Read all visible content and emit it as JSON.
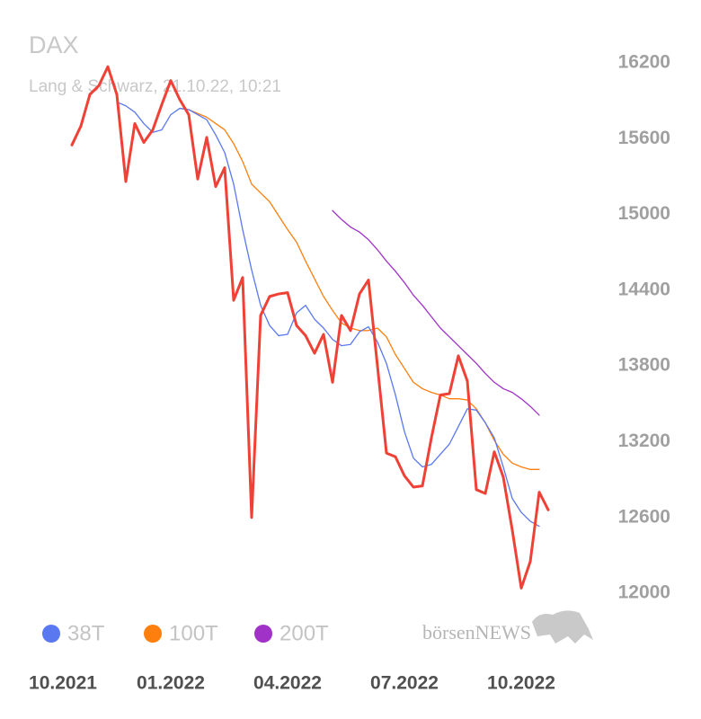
{
  "chart_data": {
    "type": "line",
    "title": "DAX",
    "subtitle": "Lang & Schwarz, 21.10.22, 10:21",
    "watermark": "börsenNEWS",
    "categories": [
      "10.2021",
      null,
      null,
      null,
      null,
      null,
      null,
      null,
      null,
      null,
      null,
      null,
      "01.2022",
      null,
      null,
      null,
      null,
      null,
      null,
      null,
      null,
      null,
      null,
      null,
      null,
      "04.2022",
      null,
      null,
      null,
      null,
      null,
      null,
      null,
      null,
      null,
      null,
      null,
      null,
      "07.2022",
      null,
      null,
      null,
      null,
      null,
      null,
      null,
      null,
      null,
      null,
      null,
      null,
      "10.2022",
      null,
      null,
      null
    ],
    "series": [
      {
        "name": "DAX",
        "color": "#ef4136",
        "values": [
          null,
          15550,
          15700,
          15950,
          16020,
          16170,
          15950,
          15260,
          15720,
          15570,
          15670,
          15870,
          16060,
          15910,
          15790,
          15280,
          15610,
          15220,
          15370,
          14320,
          14500,
          12600,
          14200,
          14350,
          14370,
          14380,
          14120,
          14040,
          13900,
          14050,
          13670,
          14200,
          14080,
          14370,
          14480,
          13800,
          13110,
          13080,
          12930,
          12840,
          12850,
          13230,
          13570,
          13580,
          13880,
          13680,
          12820,
          12790,
          13120,
          12920,
          12500,
          12040,
          12250,
          12800,
          12660
        ]
      },
      {
        "name": "38T",
        "color": "#5a78f0",
        "values": [
          null,
          null,
          null,
          null,
          null,
          null,
          15890,
          15860,
          15810,
          15720,
          15650,
          15670,
          15790,
          15840,
          15830,
          15790,
          15750,
          15630,
          15490,
          15240,
          14880,
          14560,
          14280,
          14120,
          14040,
          14050,
          14220,
          14280,
          14170,
          14100,
          14010,
          13960,
          13970,
          14070,
          14110,
          13990,
          13820,
          13570,
          13280,
          13070,
          13000,
          13020,
          13100,
          13180,
          13320,
          13460,
          13450,
          13350,
          13230,
          13000,
          12750,
          12640,
          12570,
          12530,
          null
        ]
      },
      {
        "name": "100T",
        "color": "#ff7f0e",
        "values": [
          null,
          null,
          null,
          null,
          null,
          null,
          null,
          null,
          null,
          null,
          null,
          null,
          null,
          15840,
          15830,
          15800,
          15770,
          15720,
          15670,
          15560,
          15420,
          15240,
          15170,
          15100,
          14990,
          14880,
          14780,
          14630,
          14490,
          14350,
          14240,
          14140,
          14100,
          14080,
          14080,
          14100,
          14030,
          13890,
          13780,
          13670,
          13620,
          13590,
          13570,
          13540,
          13540,
          13530,
          13460,
          13350,
          13210,
          13100,
          13030,
          13000,
          12980,
          12980,
          null
        ]
      },
      {
        "name": "200T",
        "color": "#a032c8",
        "values": [
          null,
          null,
          null,
          null,
          null,
          null,
          null,
          null,
          null,
          null,
          null,
          null,
          null,
          null,
          null,
          null,
          null,
          null,
          null,
          null,
          null,
          null,
          null,
          null,
          null,
          null,
          null,
          null,
          null,
          null,
          15030,
          14960,
          14900,
          14860,
          14800,
          14720,
          14630,
          14550,
          14460,
          14360,
          14280,
          14190,
          14100,
          14030,
          13960,
          13890,
          13820,
          13740,
          13670,
          13620,
          13590,
          13540,
          13480,
          13410,
          null
        ]
      }
    ],
    "legend_series": [
      1,
      2,
      3
    ],
    "ylim": [
      12000,
      16200
    ],
    "yticks": [
      12000,
      12600,
      13200,
      13800,
      14400,
      15000,
      15600,
      16200
    ],
    "grid": false
  }
}
